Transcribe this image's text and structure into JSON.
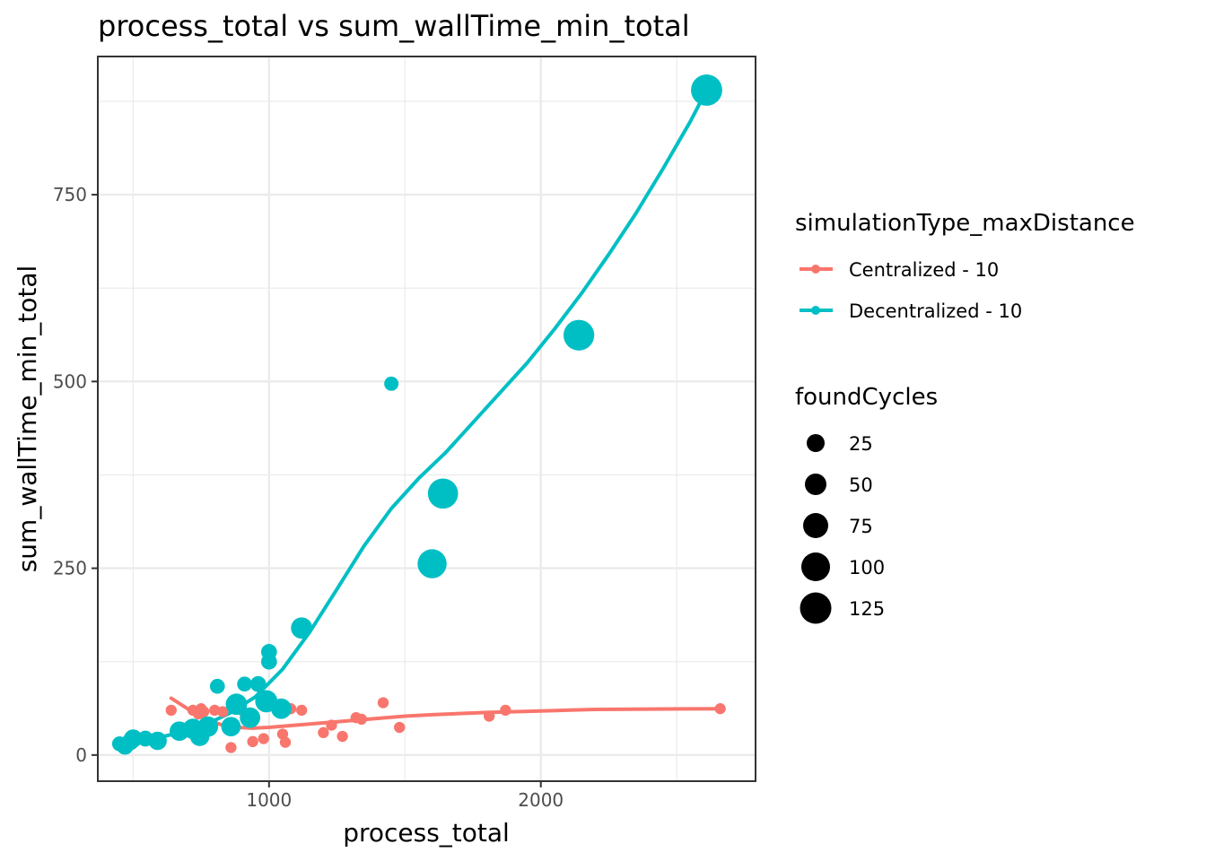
{
  "chart_data": {
    "type": "scatter",
    "title": "process_total  vs  sum_wallTime_min_total",
    "xlabel": "process_total",
    "ylabel": "sum_wallTime_min_total",
    "xlim": [
      370,
      2790
    ],
    "ylim": [
      -35,
      935
    ],
    "x_ticks": [
      1000,
      2000
    ],
    "x_tick_labels": [
      "1000",
      "2000"
    ],
    "x_minor_ticks": [
      500,
      1500,
      2500
    ],
    "y_ticks": [
      0,
      250,
      500,
      750
    ],
    "y_tick_labels": [
      "0",
      "250",
      "500",
      "750"
    ],
    "y_minor_ticks": [
      125,
      375,
      625,
      875
    ],
    "grid": true,
    "color_legend": {
      "title": "simulationType_maxDistance",
      "placement": "right",
      "entries": [
        {
          "label": "Centralized - 10",
          "color": "#F8766D"
        },
        {
          "label": "Decentralized - 10",
          "color": "#00BFC4"
        }
      ]
    },
    "size_legend": {
      "title": "foundCycles",
      "placement": "right",
      "entries": [
        {
          "label": "25",
          "value": 25
        },
        {
          "label": "50",
          "value": 50
        },
        {
          "label": "75",
          "value": 75
        },
        {
          "label": "100",
          "value": 100
        },
        {
          "label": "125",
          "value": 125
        }
      ]
    },
    "series": [
      {
        "name": "Centralized - 10",
        "color": "#F8766D",
        "points": [
          {
            "x": 640,
            "y": 60,
            "size": 3
          },
          {
            "x": 720,
            "y": 60,
            "size": 3
          },
          {
            "x": 740,
            "y": 55,
            "size": 3
          },
          {
            "x": 750,
            "y": 62,
            "size": 3
          },
          {
            "x": 760,
            "y": 58,
            "size": 3
          },
          {
            "x": 800,
            "y": 60,
            "size": 3
          },
          {
            "x": 830,
            "y": 58,
            "size": 3
          },
          {
            "x": 860,
            "y": 10,
            "size": 3
          },
          {
            "x": 900,
            "y": 60,
            "size": 3
          },
          {
            "x": 940,
            "y": 18,
            "size": 3
          },
          {
            "x": 980,
            "y": 22,
            "size": 3
          },
          {
            "x": 1050,
            "y": 28,
            "size": 3
          },
          {
            "x": 1060,
            "y": 17,
            "size": 3
          },
          {
            "x": 1080,
            "y": 62,
            "size": 3
          },
          {
            "x": 1120,
            "y": 60,
            "size": 3
          },
          {
            "x": 1200,
            "y": 30,
            "size": 3
          },
          {
            "x": 1230,
            "y": 40,
            "size": 3
          },
          {
            "x": 1270,
            "y": 25,
            "size": 3
          },
          {
            "x": 1320,
            "y": 50,
            "size": 3
          },
          {
            "x": 1340,
            "y": 48,
            "size": 3
          },
          {
            "x": 1420,
            "y": 70,
            "size": 3
          },
          {
            "x": 1480,
            "y": 37,
            "size": 3
          },
          {
            "x": 1810,
            "y": 52,
            "size": 3
          },
          {
            "x": 1870,
            "y": 60,
            "size": 3
          },
          {
            "x": 2660,
            "y": 62,
            "size": 3
          }
        ],
        "smooth": [
          [
            640,
            76
          ],
          [
            700,
            62
          ],
          [
            760,
            50
          ],
          [
            820,
            41
          ],
          [
            880,
            37
          ],
          [
            940,
            36
          ],
          [
            1000,
            37
          ],
          [
            1100,
            40
          ],
          [
            1200,
            43
          ],
          [
            1300,
            46
          ],
          [
            1400,
            49
          ],
          [
            1500,
            52
          ],
          [
            1600,
            54
          ],
          [
            1800,
            57
          ],
          [
            2000,
            59
          ],
          [
            2200,
            61
          ],
          [
            2400,
            61.5
          ],
          [
            2660,
            62
          ]
        ]
      },
      {
        "name": "Decentralized - 10",
        "color": "#00BFC4",
        "points": [
          {
            "x": 450,
            "y": 15,
            "size": 12
          },
          {
            "x": 470,
            "y": 12,
            "size": 20
          },
          {
            "x": 490,
            "y": 18,
            "size": 20
          },
          {
            "x": 500,
            "y": 22,
            "size": 25
          },
          {
            "x": 545,
            "y": 22,
            "size": 15
          },
          {
            "x": 590,
            "y": 19,
            "size": 25
          },
          {
            "x": 670,
            "y": 32,
            "size": 30
          },
          {
            "x": 720,
            "y": 35,
            "size": 35
          },
          {
            "x": 745,
            "y": 25,
            "size": 30
          },
          {
            "x": 775,
            "y": 38,
            "size": 35
          },
          {
            "x": 810,
            "y": 92,
            "size": 12
          },
          {
            "x": 860,
            "y": 38,
            "size": 30
          },
          {
            "x": 880,
            "y": 68,
            "size": 40
          },
          {
            "x": 910,
            "y": 95,
            "size": 12
          },
          {
            "x": 930,
            "y": 50,
            "size": 35
          },
          {
            "x": 960,
            "y": 95,
            "size": 15
          },
          {
            "x": 990,
            "y": 72,
            "size": 45
          },
          {
            "x": 1000,
            "y": 138,
            "size": 15
          },
          {
            "x": 1000,
            "y": 125,
            "size": 15
          },
          {
            "x": 1045,
            "y": 62,
            "size": 35
          },
          {
            "x": 1120,
            "y": 170,
            "size": 40
          },
          {
            "x": 1450,
            "y": 497,
            "size": 10
          },
          {
            "x": 1600,
            "y": 256,
            "size": 95
          },
          {
            "x": 1640,
            "y": 350,
            "size": 105
          },
          {
            "x": 2140,
            "y": 562,
            "size": 110
          },
          {
            "x": 2610,
            "y": 890,
            "size": 115
          }
        ],
        "smooth": [
          [
            450,
            15
          ],
          [
            550,
            20
          ],
          [
            650,
            28
          ],
          [
            750,
            38
          ],
          [
            850,
            55
          ],
          [
            950,
            78
          ],
          [
            1050,
            115
          ],
          [
            1150,
            165
          ],
          [
            1250,
            222
          ],
          [
            1350,
            280
          ],
          [
            1450,
            330
          ],
          [
            1550,
            370
          ],
          [
            1650,
            405
          ],
          [
            1750,
            445
          ],
          [
            1850,
            485
          ],
          [
            1950,
            525
          ],
          [
            2050,
            570
          ],
          [
            2150,
            618
          ],
          [
            2250,
            670
          ],
          [
            2350,
            725
          ],
          [
            2450,
            785
          ],
          [
            2550,
            848
          ],
          [
            2610,
            890
          ]
        ]
      }
    ]
  }
}
